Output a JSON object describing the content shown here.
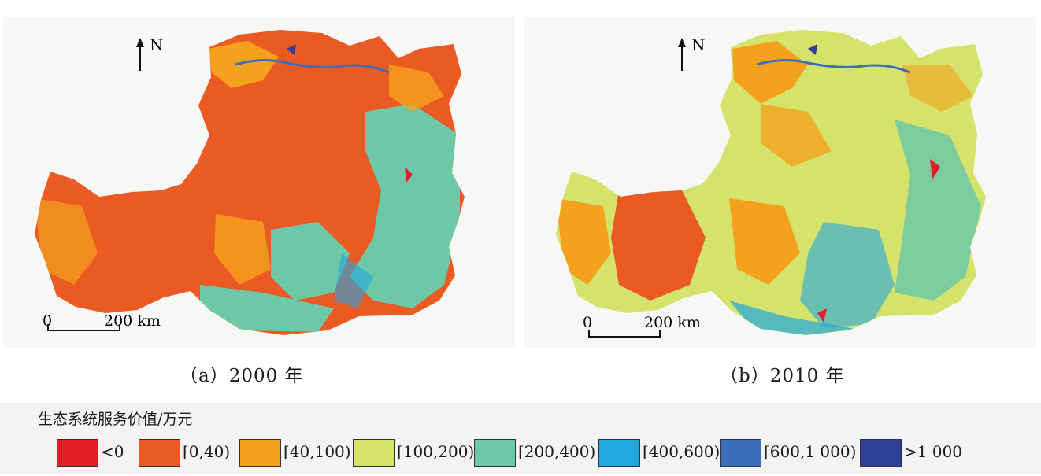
{
  "panels": [
    {
      "caption": "（a）2000 年",
      "north_label": "N",
      "scale_start": "0",
      "scale_end": "200 km"
    },
    {
      "caption": "（b）2010 年",
      "north_label": "N",
      "scale_start": "0",
      "scale_end": "200 km"
    }
  ],
  "legend": {
    "title": "生态系统服务价值/万元",
    "items": [
      {
        "label": "<0",
        "color": "#e41e26"
      },
      {
        "label": "[0,40)",
        "color": "#ec5a23"
      },
      {
        "label": "[40,100)",
        "color": "#f4a21d"
      },
      {
        "label": "[100,200)",
        "color": "#d4e36c"
      },
      {
        "label": "[200,400)",
        "color": "#6cc8a6"
      },
      {
        "label": "[400,600)",
        "color": "#23a7e0"
      },
      {
        "label": "[600,1 000)",
        "color": "#3b6eb8"
      },
      {
        "label": ">1 000",
        "color": "#2f3e96"
      }
    ]
  }
}
